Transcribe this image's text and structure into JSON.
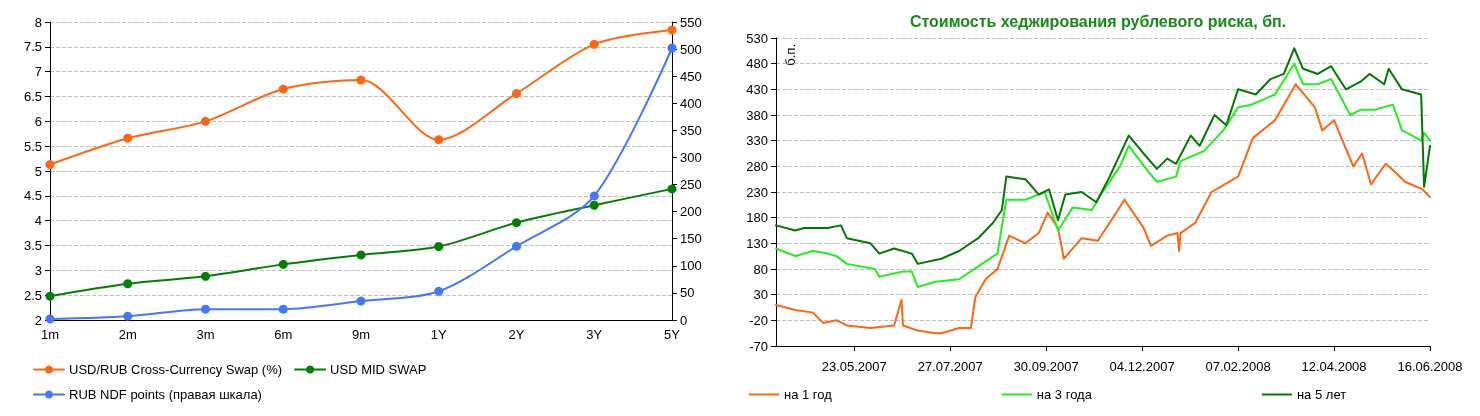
{
  "chart_data": [
    {
      "type": "line",
      "categories": [
        "1m",
        "2m",
        "3m",
        "6m",
        "9m",
        "1Y",
        "2Y",
        "3Y",
        "5Y"
      ],
      "series": [
        {
          "name": "USD/RUB Cross-Currency Swap (%)",
          "color": "#ff6611",
          "values": [
            5.13,
            5.66,
            6.0,
            6.65,
            6.83,
            5.63,
            6.56,
            7.55,
            7.84
          ]
        },
        {
          "name": "USD MID SWAP",
          "color": "#008000",
          "values": [
            2.48,
            2.73,
            2.88,
            3.12,
            3.31,
            3.48,
            3.96,
            4.31,
            4.64
          ]
        },
        {
          "name": "RUB NDF points (правая шкала)",
          "color": "#4477ff",
          "axis": "y2",
          "values": [
            2,
            7,
            20,
            20,
            35,
            53,
            136,
            229,
            502
          ]
        }
      ],
      "ylim": [
        2,
        8
      ],
      "yticks": [
        2,
        2.5,
        3,
        3.5,
        4,
        4.5,
        5,
        5.5,
        6,
        6.5,
        7,
        7.5,
        8
      ],
      "y2lim": [
        0,
        550
      ],
      "y2ticks": [
        0,
        50,
        100,
        150,
        200,
        250,
        300,
        350,
        400,
        450,
        500,
        550
      ],
      "grid": "y",
      "legend": "bottom",
      "marker": "circle"
    },
    {
      "type": "line",
      "title": "Стоимость хеджирования рублевого риска, бп.",
      "ylabel": "б.п.",
      "series": [
        {
          "name": "на 1 год",
          "color": "#ff6611",
          "x": [
            "2007-03-31",
            "2007-04-13",
            "2007-04-25",
            "2007-05-02",
            "2007-05-11",
            "2007-05-18",
            "2007-06-03",
            "2007-06-19",
            "2007-06-24",
            "2007-06-25",
            "2007-07-05",
            "2007-07-17",
            "2007-07-21",
            "2007-08-02",
            "2007-08-10",
            "2007-08-13",
            "2007-08-20",
            "2007-08-28",
            "2007-09-05",
            "2007-09-16",
            "2007-09-25",
            "2007-10-01",
            "2007-10-08",
            "2007-10-12",
            "2007-10-24",
            "2007-11-04",
            "2007-11-12",
            "2007-11-22",
            "2007-12-05",
            "2007-12-10",
            "2007-12-21",
            "2007-12-28",
            "2007-12-29",
            "2007-12-30",
            "2008-01-09",
            "2008-01-20",
            "2008-02-07",
            "2008-02-17",
            "2008-03-03",
            "2008-03-17",
            "2008-03-30",
            "2008-04-04",
            "2008-04-12",
            "2008-04-25",
            "2008-05-01",
            "2008-05-07",
            "2008-05-17",
            "2008-05-23",
            "2008-05-30",
            "2008-06-11",
            "2008-06-16"
          ],
          "values": [
            10,
            0,
            -5,
            -25,
            -20,
            -30,
            -35,
            -30,
            20,
            -30,
            -40,
            -45,
            -45,
            -35,
            -35,
            25,
            60,
            80,
            145,
            130,
            150,
            190,
            160,
            100,
            140,
            135,
            170,
            215,
            160,
            125,
            145,
            150,
            115,
            150,
            170,
            230,
            260,
            335,
            370,
            440,
            395,
            350,
            370,
            280,
            305,
            245,
            285,
            270,
            250,
            235,
            220
          ]
        },
        {
          "name": "на 3 года",
          "color": "#22ee22",
          "x": [
            "2007-03-31",
            "2007-04-13",
            "2007-04-25",
            "2007-05-05",
            "2007-05-11",
            "2007-05-18",
            "2007-06-06",
            "2007-06-09",
            "2007-06-25",
            "2007-07-01",
            "2007-07-05",
            "2007-07-17",
            "2007-08-02",
            "2007-08-15",
            "2007-08-28",
            "2007-09-03",
            "2007-09-16",
            "2007-09-29",
            "2007-10-08",
            "2007-10-18",
            "2007-10-31",
            "2007-11-04",
            "2007-11-06",
            "2007-11-19",
            "2007-11-25",
            "2007-12-08",
            "2007-12-14",
            "2007-12-27",
            "2007-12-30",
            "2008-01-15",
            "2008-01-28",
            "2008-02-07",
            "2008-02-16",
            "2008-03-03",
            "2008-03-16",
            "2008-03-22",
            "2008-04-01",
            "2008-04-10",
            "2008-04-23",
            "2008-04-30",
            "2008-05-09",
            "2008-05-22",
            "2008-05-28",
            "2008-06-04",
            "2008-06-10",
            "2008-06-12",
            "2008-06-16"
          ],
          "values": [
            120,
            105,
            115,
            110,
            105,
            90,
            80,
            65,
            75,
            75,
            45,
            55,
            60,
            85,
            110,
            215,
            215,
            230,
            155,
            200,
            195,
            215,
            225,
            280,
            320,
            270,
            250,
            260,
            290,
            310,
            350,
            395,
            400,
            420,
            480,
            440,
            440,
            450,
            380,
            390,
            390,
            400,
            350,
            340,
            330,
            345,
            330
          ]
        },
        {
          "name": "на 5 лет",
          "color": "#007a00",
          "x": [
            "2007-03-31",
            "2007-04-13",
            "2007-04-19",
            "2007-05-05",
            "2007-05-14",
            "2007-05-18",
            "2007-06-03",
            "2007-06-09",
            "2007-06-19",
            "2007-07-01",
            "2007-07-05",
            "2007-07-21",
            "2007-08-02",
            "2007-08-15",
            "2007-08-25",
            "2007-08-31",
            "2007-09-03",
            "2007-09-16",
            "2007-09-25",
            "2007-10-02",
            "2007-10-08",
            "2007-10-13",
            "2007-10-24",
            "2007-11-03",
            "2007-11-12",
            "2007-11-25",
            "2007-12-05",
            "2007-12-14",
            "2007-12-21",
            "2007-12-27",
            "2008-01-06",
            "2008-01-12",
            "2008-01-22",
            "2008-01-30",
            "2008-02-07",
            "2008-02-19",
            "2008-02-29",
            "2008-03-09",
            "2008-03-16",
            "2008-03-22",
            "2008-04-01",
            "2008-04-10",
            "2008-04-20",
            "2008-04-30",
            "2008-05-06",
            "2008-05-16",
            "2008-05-19",
            "2008-05-28",
            "2008-06-10",
            "2008-06-12",
            "2008-06-16"
          ],
          "values": [
            165,
            155,
            160,
            160,
            165,
            140,
            130,
            110,
            120,
            110,
            90,
            100,
            115,
            140,
            170,
            195,
            260,
            255,
            225,
            235,
            175,
            225,
            230,
            210,
            260,
            340,
            305,
            275,
            295,
            285,
            340,
            320,
            380,
            360,
            430,
            420,
            450,
            460,
            510,
            470,
            460,
            475,
            430,
            445,
            460,
            440,
            470,
            430,
            420,
            240,
            320
          ]
        }
      ],
      "xlim": [
        "2007-03-31",
        "2008-06-16"
      ],
      "xticks": [
        {
          "value": "2007-05-23",
          "label": "23.05.2007"
        },
        {
          "value": "2007-07-27",
          "label": "27.07.2007"
        },
        {
          "value": "2007-09-30",
          "label": "30.09.2007"
        },
        {
          "value": "2007-12-04",
          "label": "04.12.2007"
        },
        {
          "value": "2008-02-07",
          "label": "07.02.2008"
        },
        {
          "value": "2008-04-12",
          "label": "12.04.2008"
        },
        {
          "value": "2008-06-16",
          "label": "16.06.2008"
        }
      ],
      "ylim": [
        -70,
        530
      ],
      "yticks": [
        -70,
        -20,
        30,
        80,
        130,
        180,
        230,
        280,
        330,
        380,
        430,
        480,
        530
      ],
      "grid": "y",
      "legend": "bottom",
      "marker": "none"
    }
  ]
}
